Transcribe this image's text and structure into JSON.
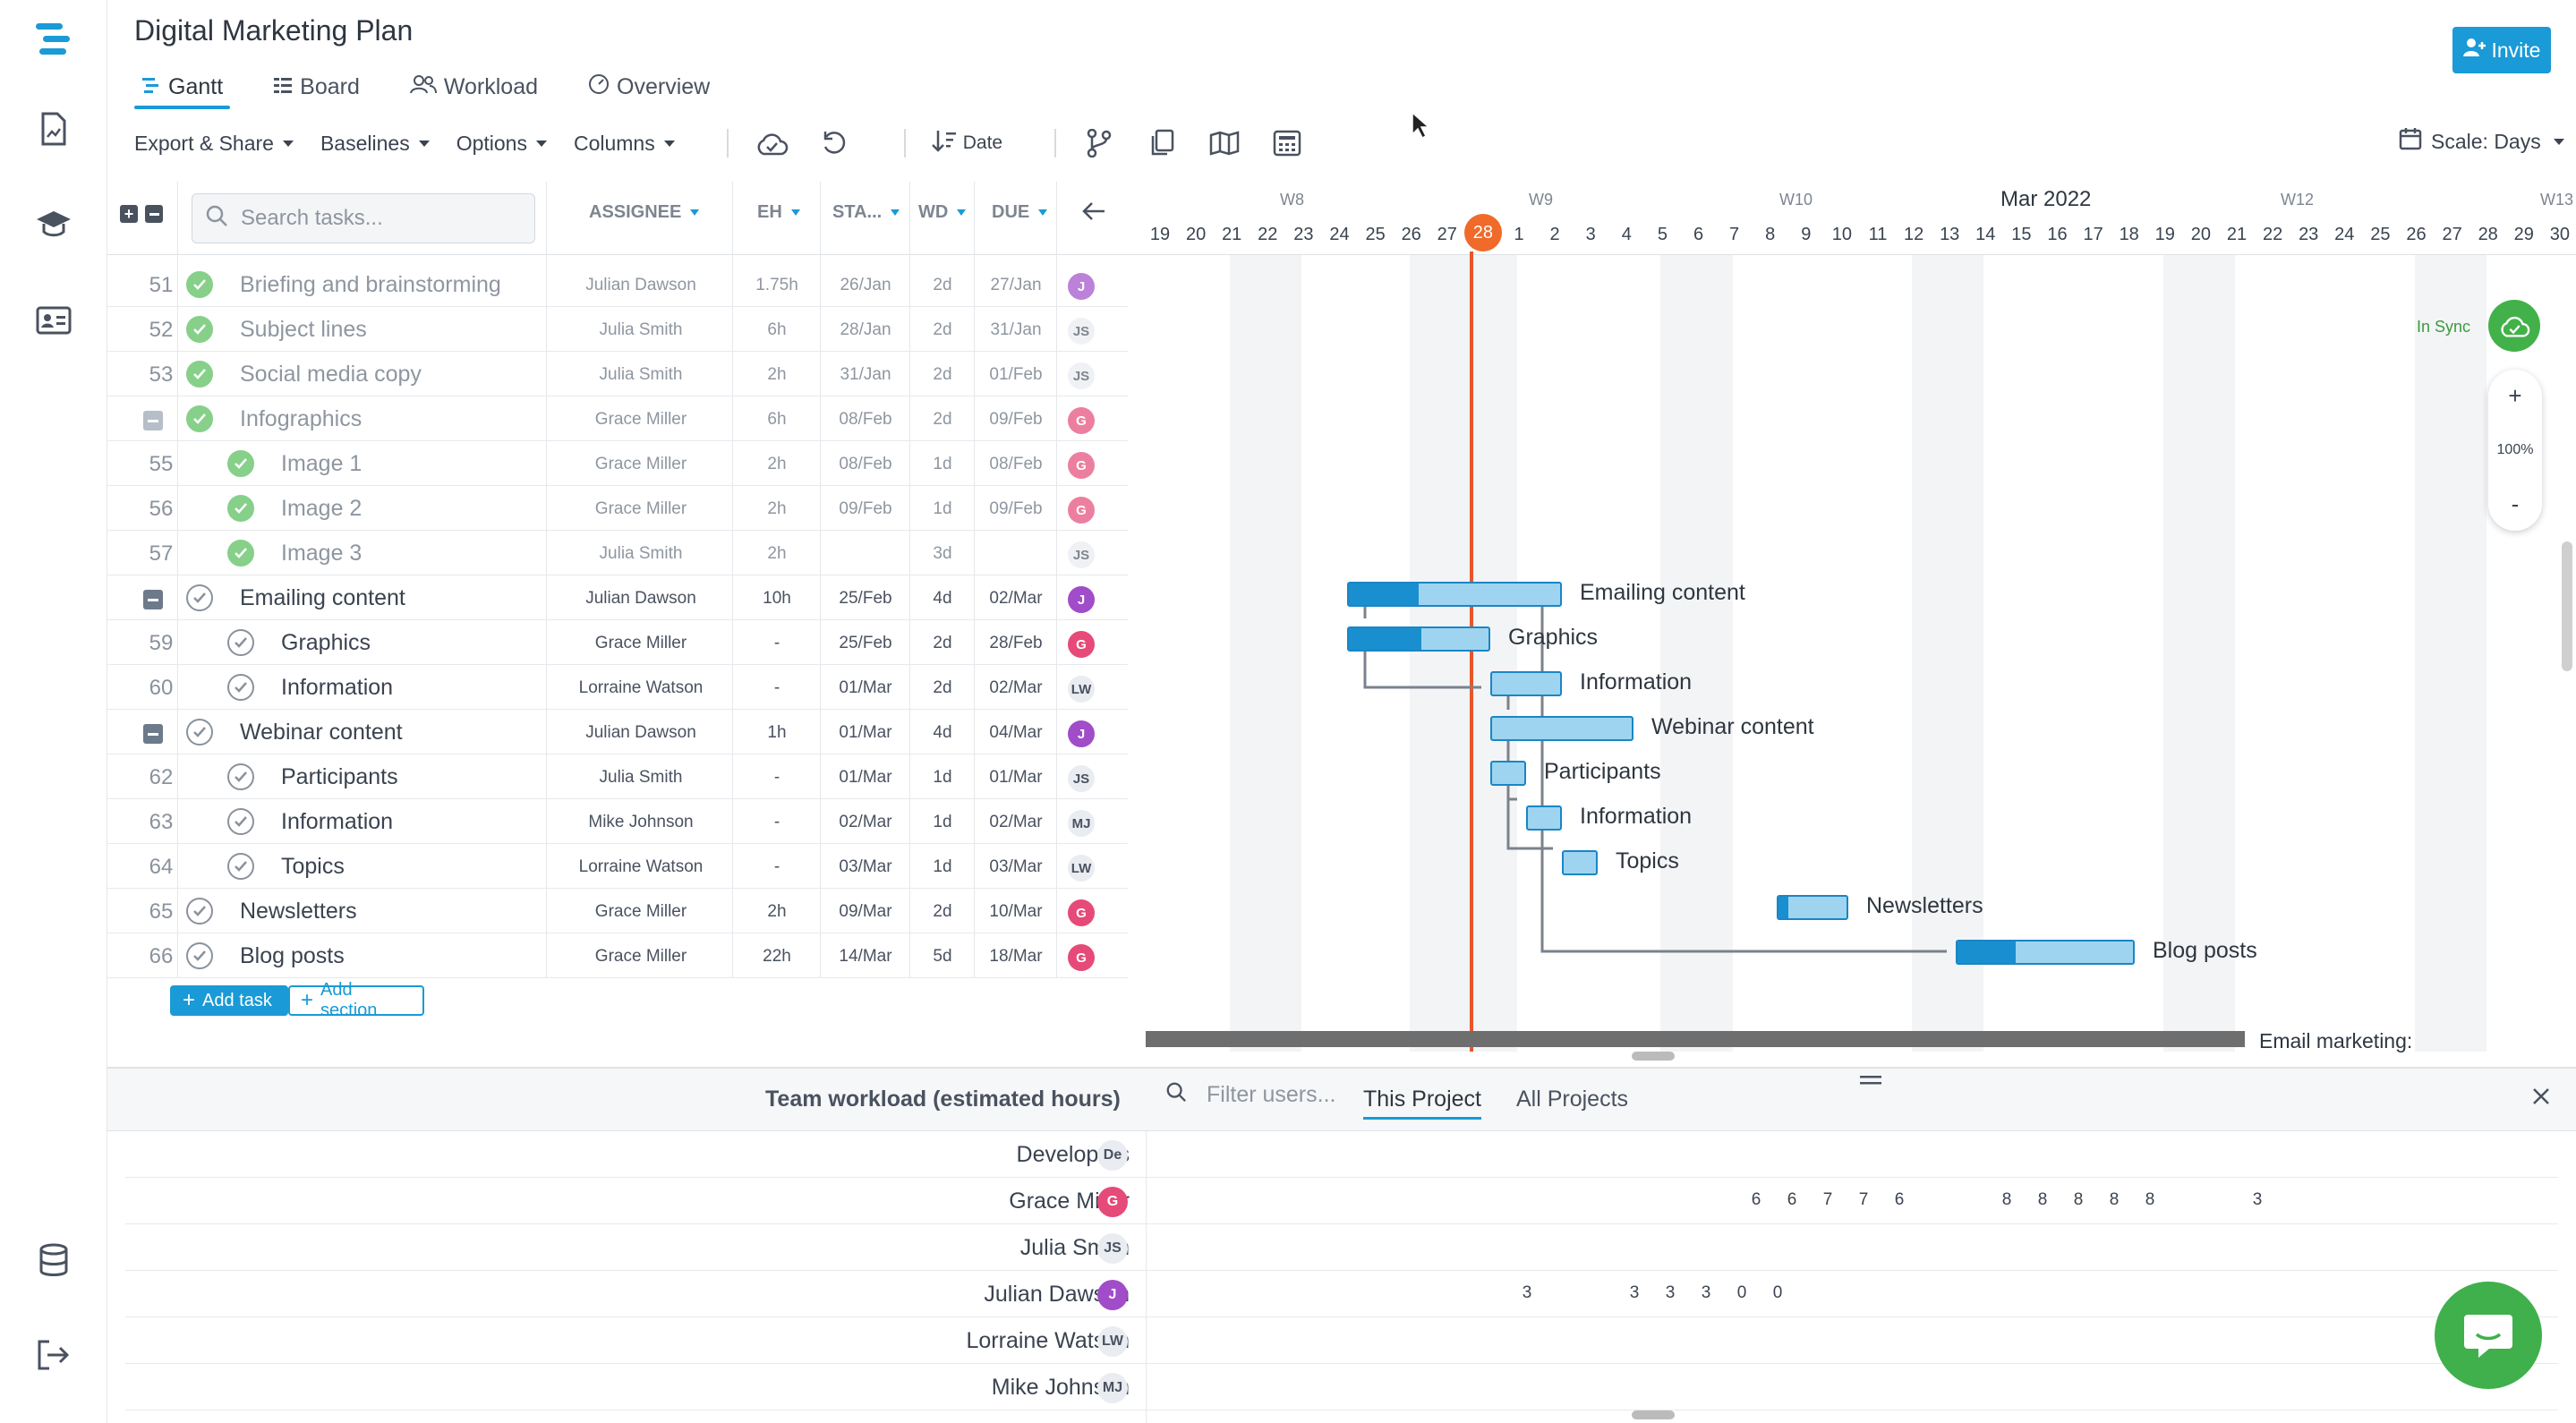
{
  "app": {
    "title": "Digital Marketing Plan",
    "invite_label": "Invite"
  },
  "tabs": [
    {
      "label": "Gantt",
      "icon": "gantt-icon"
    },
    {
      "label": "Board",
      "icon": "board-icon"
    },
    {
      "label": "Workload",
      "icon": "workload-icon"
    },
    {
      "label": "Overview",
      "icon": "overview-icon"
    }
  ],
  "toolbar": {
    "export": "Export & Share",
    "baselines": "Baselines",
    "options": "Options",
    "columns": "Columns",
    "sort": "Date",
    "scale": "Scale: Days"
  },
  "search": {
    "placeholder": "Search tasks..."
  },
  "columns": {
    "assignee": "ASSIGNEE",
    "eh": "EH",
    "start": "STA...",
    "wd": "WD",
    "due": "DUE"
  },
  "tasks": [
    {
      "num": "51",
      "name": "Briefing and brainstorming",
      "assignee": "Julian Dawson",
      "eh": "1.75h",
      "start": "26/Jan",
      "wd": "2d",
      "due": "27/Jan",
      "avatar": "J"
    },
    {
      "num": "52",
      "name": "Subject lines",
      "assignee": "Julia Smith",
      "eh": "6h",
      "start": "28/Jan",
      "wd": "2d",
      "due": "31/Jan",
      "avatar": "JS"
    },
    {
      "num": "53",
      "name": "Social media copy",
      "assignee": "Julia Smith",
      "eh": "2h",
      "start": "31/Jan",
      "wd": "2d",
      "due": "01/Feb",
      "avatar": "JS"
    },
    {
      "num": "",
      "name": "Infographics",
      "assignee": "Grace Miller",
      "eh": "6h",
      "start": "08/Feb",
      "wd": "2d",
      "due": "09/Feb",
      "avatar": "G"
    },
    {
      "num": "55",
      "name": "Image 1",
      "assignee": "Grace Miller",
      "eh": "2h",
      "start": "08/Feb",
      "wd": "1d",
      "due": "08/Feb",
      "avatar": "G"
    },
    {
      "num": "56",
      "name": "Image 2",
      "assignee": "Grace Miller",
      "eh": "2h",
      "start": "09/Feb",
      "wd": "1d",
      "due": "09/Feb",
      "avatar": "G"
    },
    {
      "num": "57",
      "name": "Image 3",
      "assignee": "Julia Smith",
      "eh": "2h",
      "start": "",
      "wd": "3d",
      "due": "",
      "avatar": "JS"
    },
    {
      "num": "",
      "name": "Emailing content",
      "assignee": "Julian Dawson",
      "eh": "10h",
      "start": "25/Feb",
      "wd": "4d",
      "due": "02/Mar",
      "avatar": "J"
    },
    {
      "num": "59",
      "name": "Graphics",
      "assignee": "Grace Miller",
      "eh": "-",
      "start": "25/Feb",
      "wd": "2d",
      "due": "28/Feb",
      "avatar": "G"
    },
    {
      "num": "60",
      "name": "Information",
      "assignee": "Lorraine Watson",
      "eh": "-",
      "start": "01/Mar",
      "wd": "2d",
      "due": "02/Mar",
      "avatar": "LW"
    },
    {
      "num": "",
      "name": "Webinar content",
      "assignee": "Julian Dawson",
      "eh": "1h",
      "start": "01/Mar",
      "wd": "4d",
      "due": "04/Mar",
      "avatar": "J"
    },
    {
      "num": "62",
      "name": "Participants",
      "assignee": "Julia Smith",
      "eh": "-",
      "start": "01/Mar",
      "wd": "1d",
      "due": "01/Mar",
      "avatar": "JS"
    },
    {
      "num": "63",
      "name": "Information",
      "assignee": "Mike Johnson",
      "eh": "-",
      "start": "02/Mar",
      "wd": "1d",
      "due": "02/Mar",
      "avatar": "MJ"
    },
    {
      "num": "64",
      "name": "Topics",
      "assignee": "Lorraine Watson",
      "eh": "-",
      "start": "03/Mar",
      "wd": "1d",
      "due": "03/Mar",
      "avatar": "LW"
    },
    {
      "num": "65",
      "name": "Newsletters",
      "assignee": "Grace Miller",
      "eh": "2h",
      "start": "09/Mar",
      "wd": "2d",
      "due": "10/Mar",
      "avatar": "G"
    },
    {
      "num": "66",
      "name": "Blog posts",
      "assignee": "Grace Miller",
      "eh": "22h",
      "start": "14/Mar",
      "wd": "5d",
      "due": "18/Mar",
      "avatar": "G"
    }
  ],
  "actions": {
    "add_task": "Add task",
    "add_section": "Add section"
  },
  "timeline": {
    "weeks": [
      "W8",
      "W9",
      "W10",
      "Mar 2022",
      "W12",
      "W13"
    ],
    "days": [
      "19",
      "20",
      "21",
      "22",
      "23",
      "24",
      "25",
      "26",
      "27",
      "28",
      "1",
      "2",
      "3",
      "4",
      "5",
      "6",
      "7",
      "8",
      "9",
      "10",
      "11",
      "12",
      "13",
      "14",
      "15",
      "16",
      "17",
      "18",
      "19",
      "20",
      "21",
      "22",
      "23",
      "24",
      "25",
      "26",
      "27",
      "28",
      "29",
      "30"
    ],
    "today": "28"
  },
  "gantt_labels": [
    "Emailing content",
    "Graphics",
    "Information",
    "Webinar content",
    "Participants",
    "Information",
    "Topics",
    "Newsletters",
    "Blog posts"
  ],
  "gantt_overflow_label": "Email marketing:",
  "sync": {
    "label": "In Sync"
  },
  "zoom": {
    "in": "+",
    "level": "100%",
    "out": "-"
  },
  "workload": {
    "title": "Team workload (estimated hours)",
    "filter_placeholder": "Filter users...",
    "tab_project": "This Project",
    "tab_all": "All Projects",
    "users": [
      {
        "name": "Developers",
        "avatar": "De",
        "hours": []
      },
      {
        "name": "Grace Miller",
        "avatar": "G",
        "hours": [
          "6",
          "6",
          "7",
          "7",
          "6",
          "8",
          "8",
          "8",
          "8",
          "8",
          "3"
        ]
      },
      {
        "name": "Julia Smith",
        "avatar": "JS",
        "hours": []
      },
      {
        "name": "Julian Dawson",
        "avatar": "J",
        "hours": [
          "3",
          "3",
          "3",
          "3",
          "0",
          "0"
        ]
      },
      {
        "name": "Lorraine Watson",
        "avatar": "LW",
        "hours": []
      },
      {
        "name": "Mike Johnson",
        "avatar": "MJ",
        "hours": []
      }
    ]
  },
  "colors": {
    "accent": "#1a9ad6",
    "today": "#e8562a",
    "done": "#86d08a",
    "bar": "#9fd4f0",
    "progress": "#1a8fd0"
  }
}
